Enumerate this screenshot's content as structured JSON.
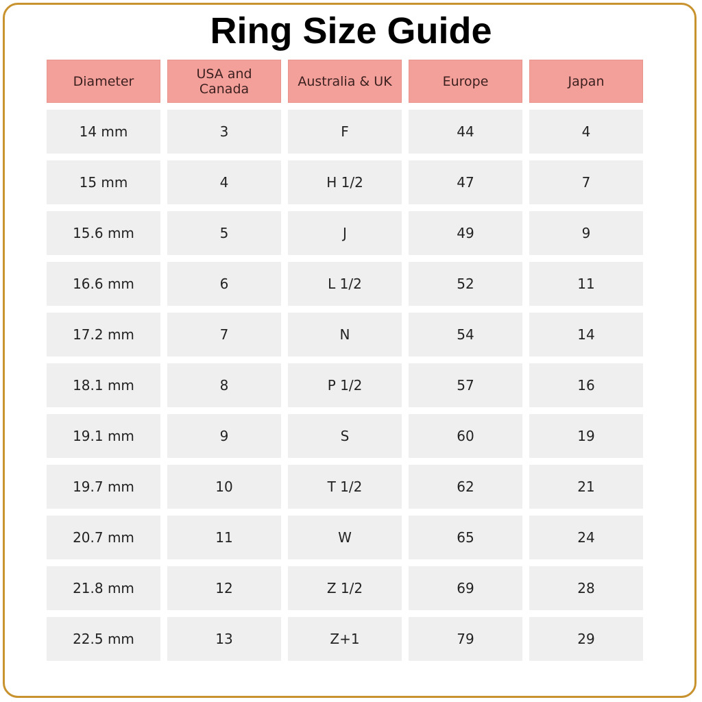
{
  "title": "Ring Size Guide",
  "colors": {
    "header_bg": "#f4a09a",
    "cell_bg": "#efefef",
    "frame": "#c8922e"
  },
  "table": {
    "headers": [
      "Diameter",
      "USA and Canada",
      "Australia & UK",
      "Europe",
      "Japan"
    ],
    "rows": [
      [
        "14 mm",
        "3",
        "F",
        "44",
        "4"
      ],
      [
        "15 mm",
        "4",
        "H 1/2",
        "47",
        "7"
      ],
      [
        "15.6 mm",
        "5",
        "J",
        "49",
        "9"
      ],
      [
        "16.6 mm",
        "6",
        "L 1/2",
        "52",
        "11"
      ],
      [
        "17.2 mm",
        "7",
        "N",
        "54",
        "14"
      ],
      [
        "18.1 mm",
        "8",
        "P 1/2",
        "57",
        "16"
      ],
      [
        "19.1 mm",
        "9",
        "S",
        "60",
        "19"
      ],
      [
        "19.7 mm",
        "10",
        "T 1/2",
        "62",
        "21"
      ],
      [
        "20.7 mm",
        "11",
        "W",
        "65",
        "24"
      ],
      [
        "21.8 mm",
        "12",
        "Z 1/2",
        "69",
        "28"
      ],
      [
        "22.5 mm",
        "13",
        "Z+1",
        "79",
        "29"
      ]
    ]
  }
}
